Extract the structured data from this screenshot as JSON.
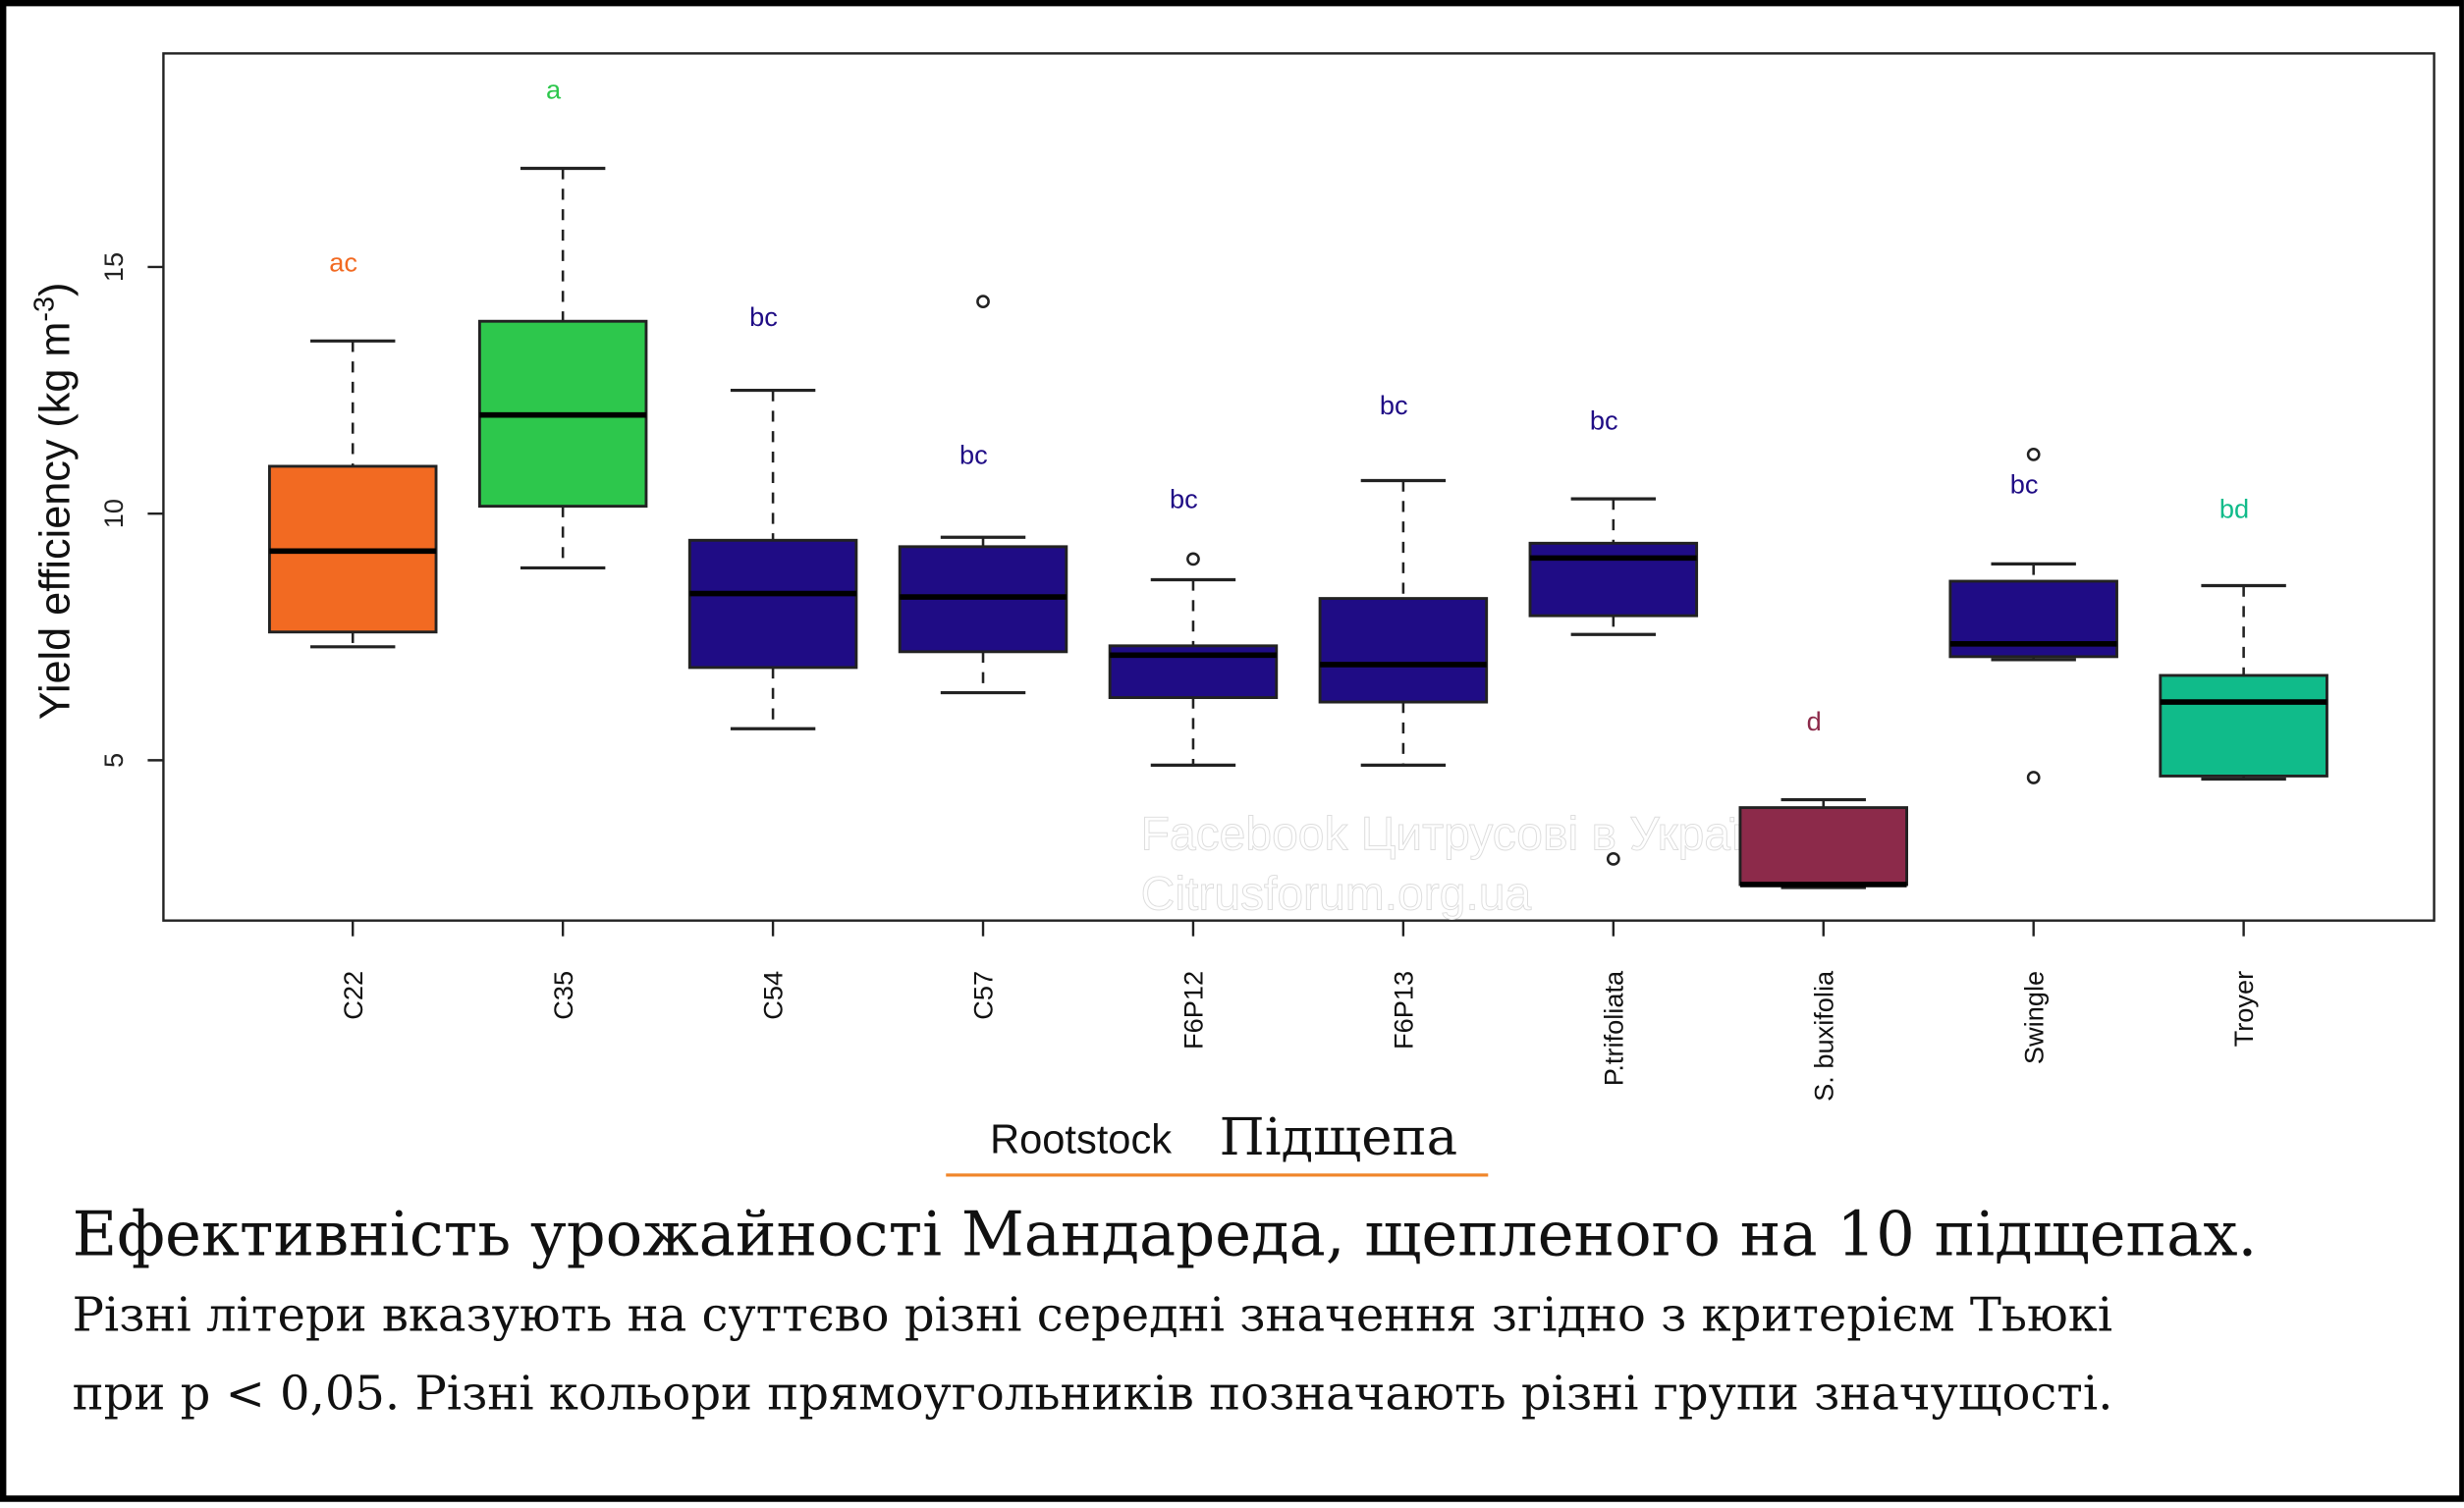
{
  "chart_data": {
    "type": "box",
    "title": "",
    "xlabel": "Rootstock",
    "xlabel_translation": "Підщепа",
    "ylabel": "Yield efficiency (kg m-3)",
    "ylim": [
      1.75,
      19.33
    ],
    "yticks": [
      5,
      10,
      15
    ],
    "grid": false,
    "categories": [
      "C22",
      "C35",
      "C54",
      "C57",
      "F6P12",
      "F6P13",
      "P.trifoliata",
      "S. buxifolia",
      "Swingle",
      "Troyer"
    ],
    "boxes": [
      {
        "name": "C22",
        "min": 7.3,
        "q1": 7.6,
        "median": 9.24,
        "q3": 10.96,
        "max": 13.5,
        "outliers": [],
        "letter": "ac",
        "letter_y": 15.1,
        "color": "#f26a22"
      },
      {
        "name": "C35",
        "min": 8.9,
        "q1": 10.15,
        "median": 12.0,
        "q3": 13.9,
        "max": 17.0,
        "outliers": [],
        "letter": "a",
        "letter_y": 18.6,
        "color": "#2dc74c"
      },
      {
        "name": "C54",
        "min": 5.64,
        "q1": 6.88,
        "median": 8.38,
        "q3": 9.46,
        "max": 12.5,
        "outliers": [],
        "letter": "bc",
        "letter_y": 14.0,
        "color": "#1f0c85"
      },
      {
        "name": "C57",
        "min": 6.37,
        "q1": 7.2,
        "median": 8.31,
        "q3": 9.33,
        "max": 9.52,
        "outliers": [
          14.3
        ],
        "letter": "bc",
        "letter_y": 11.2,
        "color": "#1f0c85"
      },
      {
        "name": "F6P12",
        "min": 4.9,
        "q1": 6.27,
        "median": 7.13,
        "q3": 7.32,
        "max": 8.66,
        "outliers": [
          9.08
        ],
        "letter": "bc",
        "letter_y": 10.3,
        "color": "#1f0c85"
      },
      {
        "name": "F6P13",
        "min": 4.9,
        "q1": 6.18,
        "median": 6.94,
        "q3": 8.28,
        "max": 10.67,
        "outliers": [],
        "letter": "bc",
        "letter_y": 12.2,
        "color": "#1f0c85"
      },
      {
        "name": "P.trifoliata",
        "min": 7.55,
        "q1": 7.93,
        "median": 9.1,
        "q3": 9.4,
        "max": 10.3,
        "outliers": [
          3.0
        ],
        "letter": "bc",
        "letter_y": 11.9,
        "color": "#1f0c85"
      },
      {
        "name": "S. buxifolia",
        "min": 2.42,
        "q1": 2.48,
        "median": 2.48,
        "q3": 4.04,
        "max": 4.2,
        "outliers": [],
        "letter": "d",
        "letter_y": 5.8,
        "color": "#8c2a4a"
      },
      {
        "name": "Swingle",
        "min": 7.04,
        "q1": 7.1,
        "median": 7.36,
        "q3": 8.63,
        "max": 8.98,
        "outliers": [
          11.2,
          4.65
        ],
        "letter": "bc",
        "letter_y": 10.6,
        "color": "#1f0c85"
      },
      {
        "name": "Troyer",
        "min": 4.62,
        "q1": 4.68,
        "median": 6.18,
        "q3": 6.72,
        "max": 8.54,
        "outliers": [],
        "letter": "bd",
        "letter_y": 10.1,
        "color": "#10bb8a"
      }
    ]
  },
  "watermark": {
    "line1": "Facebook Цитрусові в Україні",
    "line2": "Citrusforum.org.ua"
  },
  "caption": {
    "title": "Ефективність урожайності Мандареда, щепленого на 10 підщепах.",
    "line2": "Різні літери вказують на суттєво різні середні значення згідно з критерієм Тьюкі",
    "line3": "при p < 0,05. Різні кольори прямоугольників позначають різні групи значущості."
  }
}
